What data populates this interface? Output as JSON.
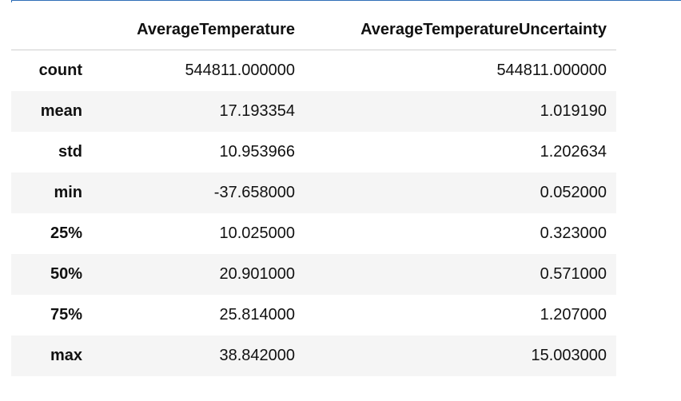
{
  "table": {
    "columns": [
      "AverageTemperature",
      "AverageTemperatureUncertainty"
    ],
    "rows": [
      {
        "label": "count",
        "values": [
          "544811.000000",
          "544811.000000"
        ]
      },
      {
        "label": "mean",
        "values": [
          "17.193354",
          "1.019190"
        ]
      },
      {
        "label": "std",
        "values": [
          "10.953966",
          "1.202634"
        ]
      },
      {
        "label": "min",
        "values": [
          "-37.658000",
          "0.052000"
        ]
      },
      {
        "label": "25%",
        "values": [
          "10.025000",
          "0.323000"
        ]
      },
      {
        "label": "50%",
        "values": [
          "20.901000",
          "0.571000"
        ]
      },
      {
        "label": "75%",
        "values": [
          "25.814000",
          "1.207000"
        ]
      },
      {
        "label": "max",
        "values": [
          "38.842000",
          "15.003000"
        ]
      }
    ]
  }
}
